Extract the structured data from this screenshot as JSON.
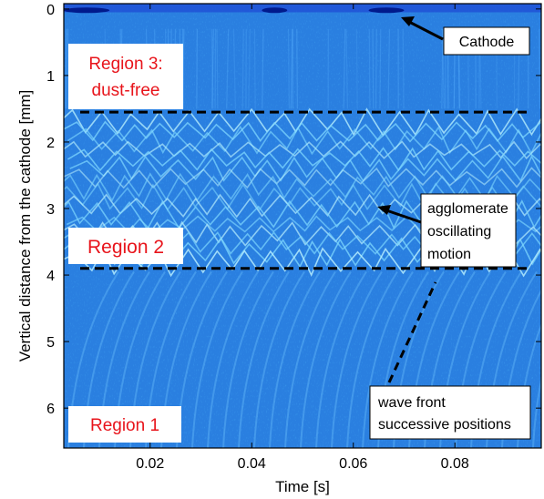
{
  "chart_data": {
    "type": "heatmap",
    "title": "",
    "xlabel": "Time [s]",
    "ylabel": "Vertical distance from the cathode [mm]",
    "xlim": [
      0.003,
      0.097
    ],
    "ylim": [
      6.6,
      -0.08
    ],
    "y_inverted": true,
    "colormap": "jet",
    "xticks": [
      0.02,
      0.04,
      0.06,
      0.08
    ],
    "xtick_labels": [
      "0.02",
      "0.04",
      "0.06",
      "0.08"
    ],
    "yticks": [
      0,
      1,
      2,
      3,
      4,
      5,
      6
    ],
    "ytick_labels": [
      "0",
      "1",
      "2",
      "3",
      "4",
      "5",
      "6"
    ],
    "boundaries": [
      {
        "name": "region-3-2-boundary",
        "y": 1.55
      },
      {
        "name": "region-2-1-boundary",
        "y": 3.9
      }
    ],
    "regions": [
      {
        "label_lines": [
          "Region 3:",
          "dust-free"
        ],
        "color": "#e8141b"
      },
      {
        "label_lines": [
          "Region 2"
        ],
        "color": "#e8141b"
      },
      {
        "label_lines": [
          "Region 1"
        ],
        "color": "#e8141b"
      }
    ],
    "annotations": [
      {
        "text_lines": [
          "Cathode"
        ],
        "arrow": "solid",
        "points_to": {
          "x": 0.069,
          "y": 0.02
        }
      },
      {
        "text_lines": [
          "agglomerate",
          "oscillating",
          "motion"
        ],
        "arrow": "solid",
        "points_to": {
          "x": 0.064,
          "y": 3.0
        }
      },
      {
        "text_lines": [
          "wave front",
          "successive positions"
        ],
        "arrow": "dashed",
        "points_to": {
          "x": 0.075,
          "y": 3.95
        }
      }
    ]
  }
}
